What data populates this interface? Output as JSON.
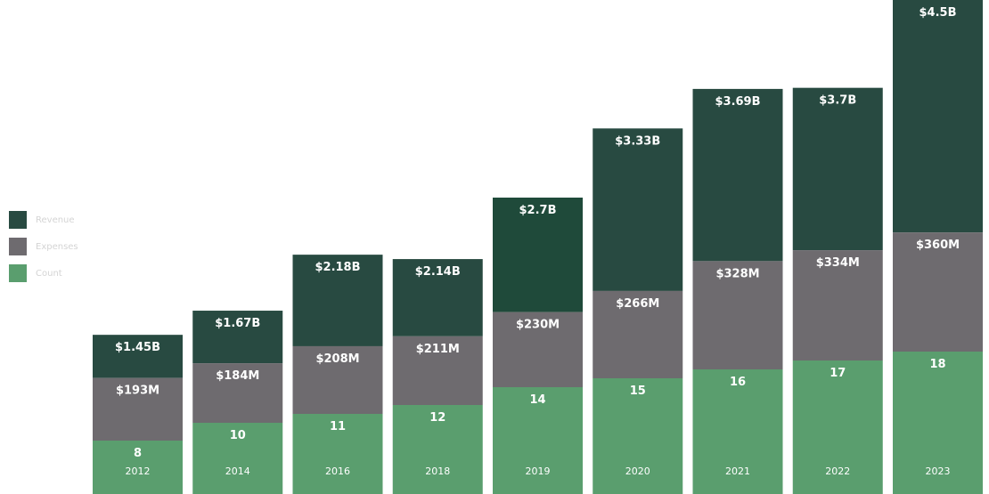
{
  "chart_data": {
    "type": "bar",
    "stacked": true,
    "categories": [
      "2012",
      "2014",
      "2016",
      "2018",
      "2019",
      "2020",
      "2021",
      "2022",
      "2023"
    ],
    "series": [
      {
        "name": "Count",
        "color": "#5a9e6e",
        "labels": [
          "8",
          "10",
          "11",
          "12",
          "14",
          "15",
          "16",
          "17",
          "18"
        ],
        "values": [
          8,
          10,
          11,
          12,
          14,
          15,
          16,
          17,
          18
        ]
      },
      {
        "name": "Expenses",
        "color": "#6e6b6f",
        "labels": [
          "$193M",
          "$184M",
          "$208M",
          "$211M",
          "$230M",
          "$266M",
          "$328M",
          "$334M",
          "$360M"
        ],
        "values": [
          193,
          184,
          208,
          211,
          230,
          266,
          328,
          334,
          360
        ]
      },
      {
        "name": "Revenue",
        "color": "#284a41",
        "highlight_color": "#1f4a3a",
        "labels": [
          "$1.45B",
          "$1.67B",
          "$2.18B",
          "$2.14B",
          "$2.7B",
          "$3.33B",
          "$3.69B",
          "$3.7B",
          "$4.5B"
        ],
        "values": [
          1.45,
          1.67,
          2.18,
          2.14,
          2.7,
          3.33,
          3.69,
          3.7,
          4.5
        ]
      }
    ],
    "legend_position": "left"
  },
  "legend": {
    "items": [
      {
        "label": "Revenue",
        "color": "#284a41"
      },
      {
        "label": "Expenses",
        "color": "#6e6b6f"
      },
      {
        "label": "Count",
        "color": "#5a9e6e"
      }
    ]
  }
}
